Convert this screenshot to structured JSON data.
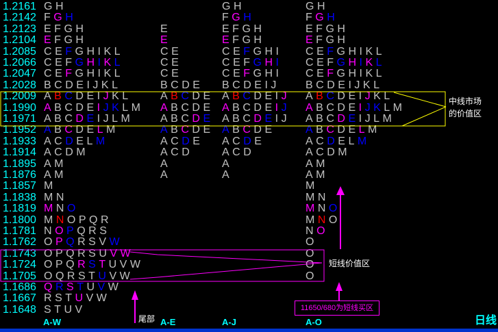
{
  "colors": {
    "g": "#c0c0c0",
    "m": "#ff00ff",
    "b": "#0000ff",
    "r": "#ff0000",
    "price": "#00ffff",
    "value_area_mid": "#ffff00",
    "value_area_short": "#ff00ff"
  },
  "columns": [
    "A-W",
    "A-E",
    "A-J",
    "A-O"
  ],
  "rows": [
    {
      "price": "1.2161",
      "c": [
        "GH",
        "",
        "GH",
        "GH"
      ]
    },
    {
      "price": "1.2142",
      "c": [
        "FGmHb",
        "",
        "FGmHb",
        "FGmHb"
      ]
    },
    {
      "price": "1.2123",
      "c": [
        "EFGH",
        "E",
        "EFGH",
        "EFGH"
      ]
    },
    {
      "price": "1.2104",
      "c": [
        "EmFGH",
        "Em",
        "EmFGH",
        "EmFGH"
      ]
    },
    {
      "price": "1.2085",
      "c": [
        "CEFbGHIKL",
        "CE",
        "CEFbGHI",
        "CEFbGHIKL"
      ]
    },
    {
      "price": "1.2066",
      "c": [
        "CEFGbHmIbKmLb",
        "CE",
        "CEFGbHmIb",
        "CEFGbHmIbKmLb"
      ]
    },
    {
      "price": "1.2047",
      "c": [
        "CEFmGHIKL",
        "CE",
        "CEFmGHI",
        "CEFmGHIKL"
      ]
    },
    {
      "price": "1.2028",
      "c": [
        "BCDEIJKL",
        "BCDE",
        "BCDEIJ",
        "BCDEIJKL"
      ]
    },
    {
      "price": "1.2009",
      "c": [
        "ABrCbDEIJmKL",
        "ABrCbDE",
        "ABrCbDEIJm",
        "ABrCbDEIJmKL"
      ]
    },
    {
      "price": "1.1990",
      "c": [
        "AmBCDEImJbKbLM",
        "AmBCDE",
        "AmBCDEImJb",
        "AmBCDEImJbKbLM"
      ]
    },
    {
      "price": "1.1971",
      "c": [
        "ABCDmEbIJLM",
        "ABCDmEb",
        "ABCDmEbIJ",
        "ABCDmEbIJLM"
      ]
    },
    {
      "price": "1.1952",
      "c": [
        "AbBCmDELmM",
        "AbBCmDE",
        "AbBCmDE",
        "AbBCmDELmM"
      ]
    },
    {
      "price": "1.1933",
      "c": [
        "ACDbELMb",
        "ACDbE",
        "ACDbE",
        "ACDbELMb"
      ]
    },
    {
      "price": "1.1914",
      "c": [
        "ACDM",
        "ACD",
        "ACD",
        "ACDM"
      ]
    },
    {
      "price": "1.1895",
      "c": [
        "AM",
        "A",
        "A",
        "AM"
      ]
    },
    {
      "price": "1.1876",
      "c": [
        "AM",
        "A",
        "A",
        "AM"
      ]
    },
    {
      "price": "1.1857",
      "c": [
        "M",
        "",
        "",
        "M"
      ]
    },
    {
      "price": "1.1838",
      "c": [
        "MN",
        "",
        "",
        "MN"
      ]
    },
    {
      "price": "1.1819",
      "c": [
        "MmNOb",
        "",
        "",
        "MmNOb"
      ]
    },
    {
      "price": "1.1800",
      "c": [
        "MNrOPQR",
        "",
        "",
        "MNrO"
      ]
    },
    {
      "price": "1.1781",
      "c": [
        "NOmPbQRS",
        "",
        "",
        "NOm"
      ]
    },
    {
      "price": "1.1762",
      "c": [
        "OPmQbRSVWb",
        "",
        "",
        "O"
      ]
    },
    {
      "price": "1.1743",
      "c": [
        "OPQRSUVmWm",
        "",
        "",
        "O"
      ]
    },
    {
      "price": "1.1724",
      "c": [
        "OPQRmSbTmUVW",
        "",
        "",
        "O"
      ]
    },
    {
      "price": "1.1705",
      "c": [
        "OQRSTUbVW",
        "",
        "",
        "O"
      ]
    },
    {
      "price": "1.1686",
      "c": [
        "QmRbSmTbUVbW",
        "",
        "",
        ""
      ]
    },
    {
      "price": "1.1667",
      "c": [
        "RSTUmVW",
        "",
        "",
        ""
      ]
    },
    {
      "price": "1.1648",
      "c": [
        "STUV",
        "",
        "",
        ""
      ]
    }
  ],
  "annotations": {
    "mid_value_area_line1": "中线市场",
    "mid_value_area_line2": "的价值区",
    "short_value_area": "短线价值区",
    "tail": "尾部",
    "buy_zone": "11650/680为短线买区"
  },
  "period": "日线"
}
